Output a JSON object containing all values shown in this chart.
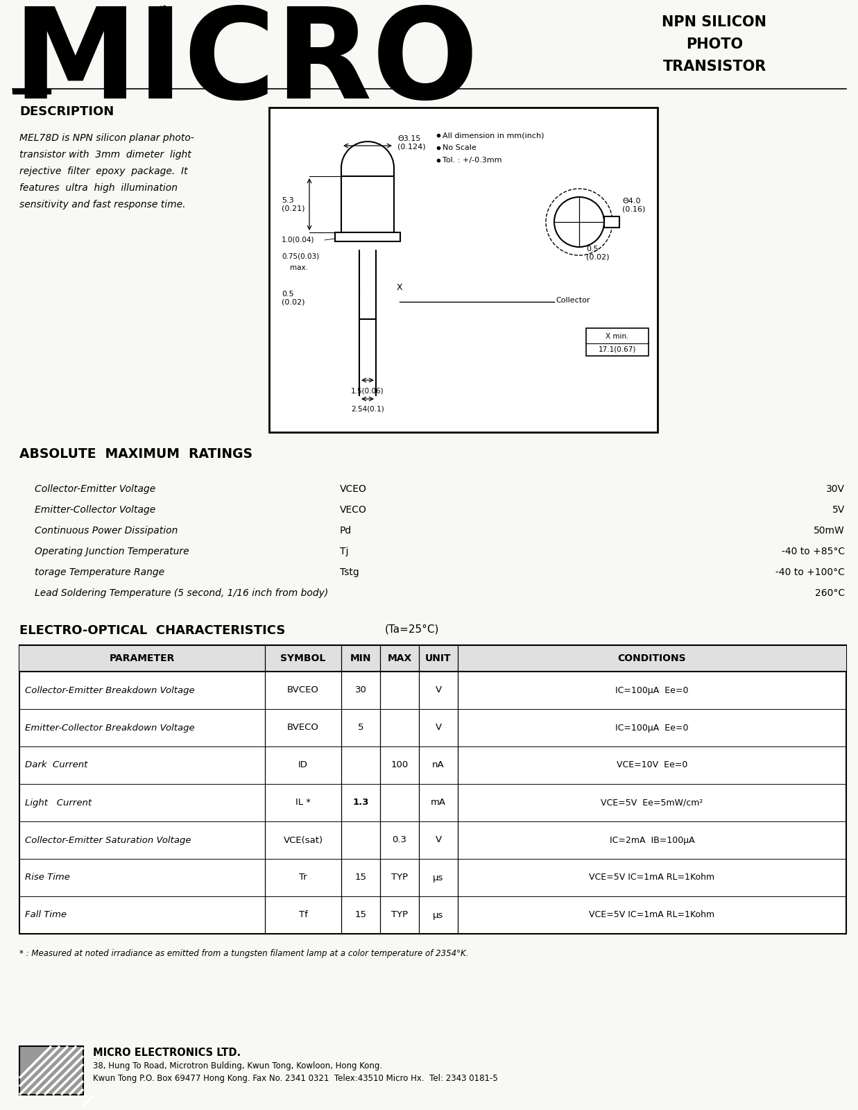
{
  "bg_color": "#f8f8f5",
  "subtitle_line1": "NPN SILICON",
  "subtitle_line2": "PHOTO",
  "subtitle_line3": "TRANSISTOR",
  "description_title": "DESCRIPTION",
  "description_text": [
    "MEL78D is NPN silicon planar photo-",
    "transistor with  3mm  dimeter  light",
    "rejective  filter  epoxy  package.  It",
    "features  ultra  high  illumination",
    "sensitivity and fast response time."
  ],
  "abs_max_title": "ABSOLUTE  MAXIMUM  RATINGS",
  "abs_max_rows": [
    [
      "Collector-Emitter Voltage",
      "VCEO",
      "30V"
    ],
    [
      "Emitter-Collector Voltage",
      "VECO",
      "5V"
    ],
    [
      "Continuous Power Dissipation",
      "Pd",
      "50mW"
    ],
    [
      "Operating Junction Temperature",
      "Tj",
      "-40 to +85°C"
    ],
    [
      "torage Temperature Range",
      "Tstg",
      "-40 to +100°C"
    ],
    [
      "Lead Soldering Temperature (5 second, 1/16 inch from body)",
      "",
      "260°C"
    ]
  ],
  "eo_char_title": "ELECTRO-OPTICAL  CHARACTERISTICS",
  "eo_char_subtitle": "(Ta=25°C)",
  "table_headers": [
    "PARAMETER",
    "SYMBOL",
    "MIN",
    "MAX",
    "UNIT",
    "CONDITIONS"
  ],
  "table_rows": [
    [
      "Collector-Emitter Breakdown Voltage",
      "BVCEO",
      "30",
      "",
      "V",
      "IC=100μA  Ee=0"
    ],
    [
      "Emitter-Collector Breakdown Voltage",
      "BVECO",
      "5",
      "",
      "V",
      "IC=100μA  Ee=0"
    ],
    [
      "Dark  Current",
      "ID",
      "",
      "100",
      "nA",
      "VCE=10V  Ee=0"
    ],
    [
      "Light   Current",
      "IL *",
      "1.3",
      "",
      "mA",
      "VCE=5V  Ee=5mW/cm²"
    ],
    [
      "Collector-Emitter Saturation Voltage",
      "VCE(sat)",
      "",
      "0.3",
      "V",
      "IC=2mA  IB=100μA"
    ],
    [
      "Rise Time",
      "Tr",
      "15",
      "TYP",
      "μs",
      "VCE=5V IC=1mA RL=1Kohm"
    ],
    [
      "Fall Time",
      "Tf",
      "15",
      "TYP",
      "μs",
      "VCE=5V IC=1mA RL=1Kohm"
    ]
  ],
  "table_note": "* : Measured at noted irradiance as emitted from a tungsten filament lamp at a color temperature of 2354°K.",
  "footer_company": "MICRO ELECTRONICS LTD.",
  "footer_address": "38, Hung To Road, Microtron Bulding, Kwun Tong, Kowloon, Hong Kong.",
  "footer_contact": "Kwun Tong P.O. Box 69477 Hong Kong. Fax No. 2341 0321  Telex:43510 Micro Hx.  Tel: 2343 0181-5",
  "dim_notes": [
    "All dimension in mm(inch)",
    "No Scale",
    "Tol. : +/-0.3mm"
  ]
}
